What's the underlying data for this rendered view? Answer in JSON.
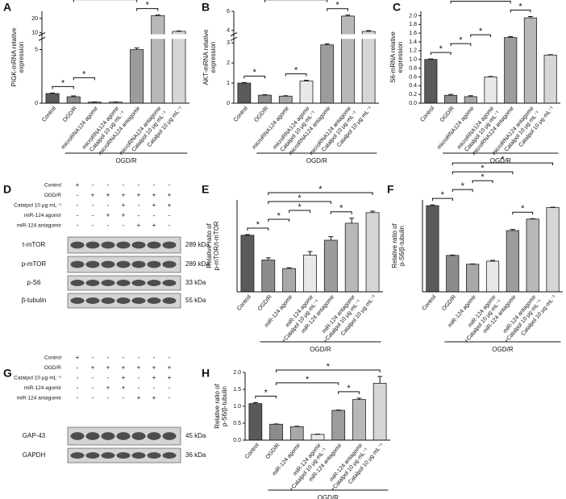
{
  "chart_data": [
    {
      "type": "bar",
      "panel": "A",
      "ylabel": [
        "PIGK-mRNA relative",
        "expression"
      ],
      "categories": [
        [
          "Control"
        ],
        [
          "OGD/R"
        ],
        [
          "microRNA124 agomir"
        ],
        [
          "microRNA124 agomir",
          "Catalpol 10 μg·mL⁻¹"
        ],
        [
          "microRNA124 antagomir"
        ],
        [
          "microRNA124 antagomir",
          "Catalpol 10 μg·mL⁻¹"
        ],
        [
          "Catalpol 10 μg·mL⁻¹"
        ]
      ],
      "values": [
        0.9,
        0.6,
        0.1,
        0.1,
        5,
        22,
        11
      ],
      "errors": [
        0.05,
        0.08,
        0.02,
        0.02,
        0.15,
        0.4,
        0.3
      ],
      "colors": [
        "#5a5a5a",
        "#8c8c8c",
        "#a8a8a8",
        "#e8e8e8",
        "#9c9c9c",
        "#b8b8b8",
        "#d6d6d6"
      ],
      "ylim": [
        0,
        25
      ],
      "ybreak": [
        6,
        9
      ],
      "yticks": [
        0,
        5,
        10,
        20
      ],
      "group_label": "OGD/R",
      "significance": [
        {
          "pair": [
            0,
            1
          ],
          "label": "*"
        },
        {
          "pair": [
            1,
            2
          ],
          "label": "*"
        },
        {
          "pair": [
            4,
            5
          ],
          "label": "*"
        },
        {
          "pair": [
            1,
            4
          ],
          "label": "*"
        },
        {
          "pair": [
            1,
            6
          ],
          "label": "*"
        }
      ]
    },
    {
      "type": "bar",
      "panel": "B",
      "ylabel": [
        "AKT-mRNA relative",
        "expression"
      ],
      "categories": [
        [
          "Control"
        ],
        [
          "OGD/R"
        ],
        [
          "microRNA124 agomir"
        ],
        [
          "microRNA124 agomir",
          "Catalpol 10 μg·mL⁻¹"
        ],
        [
          "microRNA124 antagomir"
        ],
        [
          "microRNA124 antagomir",
          "Catalpol 10 μg·mL⁻¹"
        ],
        [
          "Catalpol 10 μg·mL⁻¹"
        ]
      ],
      "values": [
        1.0,
        0.4,
        0.35,
        1.1,
        2.9,
        5.5,
        3.9
      ],
      "errors": [
        0.03,
        0.02,
        0.02,
        0.04,
        0.05,
        0.1,
        0.08
      ],
      "colors": [
        "#5a5a5a",
        "#8c8c8c",
        "#a8a8a8",
        "#e8e8e8",
        "#9c9c9c",
        "#b8b8b8",
        "#d6d6d6"
      ],
      "ylim": [
        0,
        6
      ],
      "ybreak": [
        3.2,
        3.6
      ],
      "yticks": [
        0,
        1,
        2,
        3,
        4,
        6
      ],
      "group_label": "OGD/R",
      "significance": [
        {
          "pair": [
            0,
            1
          ],
          "label": "*"
        },
        {
          "pair": [
            2,
            3
          ],
          "label": "*"
        },
        {
          "pair": [
            4,
            5
          ],
          "label": "*"
        },
        {
          "pair": [
            1,
            4
          ],
          "label": "*"
        },
        {
          "pair": [
            1,
            6
          ],
          "label": "*"
        }
      ]
    },
    {
      "type": "bar",
      "panel": "C",
      "ylabel": [
        "S6-mRNA relative",
        "expression"
      ],
      "categories": [
        [
          "Control"
        ],
        [
          "OGD/R"
        ],
        [
          "microRNA124 agomir"
        ],
        [
          "microRNA124 agomir",
          "Catalpol 10 μg·mL⁻¹"
        ],
        [
          "microRNA124 antagomir"
        ],
        [
          "microRNA124 antagomir",
          "Catalpol 10 μg·mL⁻¹"
        ],
        [
          "Catalpol 10 μg·mL⁻¹"
        ]
      ],
      "values": [
        1.0,
        0.18,
        0.15,
        0.6,
        1.5,
        1.95,
        1.1
      ],
      "errors": [
        0.01,
        0.02,
        0.02,
        0.01,
        0.02,
        0.03,
        0.01
      ],
      "colors": [
        "#5a5a5a",
        "#8c8c8c",
        "#a8a8a8",
        "#e8e8e8",
        "#9c9c9c",
        "#b8b8b8",
        "#d6d6d6"
      ],
      "ylim": [
        0,
        2.1
      ],
      "yticks": [
        {
          "value": 0,
          "label": "0.0"
        },
        0.2,
        0.4,
        0.6,
        0.8,
        {
          "value": 1,
          "label": "1.0"
        },
        1.2,
        1.4,
        1.6,
        1.8,
        {
          "value": 2,
          "label": "2.0"
        }
      ],
      "group_label": "OGD/R",
      "significance": [
        {
          "pair": [
            0,
            1
          ],
          "label": "*"
        },
        {
          "pair": [
            1,
            2
          ],
          "label": "*"
        },
        {
          "pair": [
            2,
            3
          ],
          "label": "*"
        },
        {
          "pair": [
            4,
            5
          ],
          "label": "*"
        },
        {
          "pair": [
            1,
            4
          ],
          "label": "*"
        },
        {
          "pair": [
            1,
            6
          ],
          "label": "*"
        }
      ]
    },
    {
      "type": "bar",
      "panel": "E",
      "ylabel": [
        "Relative ratio of",
        "p-mTOR/t-mTOR"
      ],
      "categories": [
        [
          "Control"
        ],
        [
          "OGD/R"
        ],
        [
          "miR-124 agomir"
        ],
        [
          "miR-124 agomir",
          "+Catalpol 10 μg·mL⁻¹"
        ],
        [
          "miR-124 antagomir"
        ],
        [
          "miR-124 antagomir",
          "+Catalpol 10 μg·mL⁻¹"
        ],
        [
          "Catalpol 10 μg·mL⁻¹"
        ]
      ],
      "values": [
        0.8,
        0.45,
        0.33,
        0.52,
        0.73,
        0.97,
        1.12
      ],
      "errors": [
        0.01,
        0.03,
        0.01,
        0.05,
        0.05,
        0.07,
        0.02
      ],
      "colors": [
        "#5a5a5a",
        "#8c8c8c",
        "#a8a8a8",
        "#e8e8e8",
        "#9c9c9c",
        "#b8b8b8",
        "#d6d6d6"
      ],
      "ylim": [
        0,
        1.3
      ],
      "group_label": "OGD/R",
      "significance": [
        {
          "pair": [
            0,
            1
          ],
          "label": "*"
        },
        {
          "pair": [
            1,
            2
          ],
          "label": "*"
        },
        {
          "pair": [
            2,
            3
          ],
          "label": "*"
        },
        {
          "pair": [
            4,
            5
          ],
          "label": "*"
        },
        {
          "pair": [
            1,
            4
          ],
          "label": "*"
        },
        {
          "pair": [
            1,
            6
          ],
          "label": "*"
        }
      ]
    },
    {
      "type": "bar",
      "panel": "F",
      "ylabel": [
        "Relative ratio of",
        "p-S6/β-tubulin"
      ],
      "categories": [
        [
          "Control"
        ],
        [
          "OGD/R"
        ],
        [
          "miR-124 agomir"
        ],
        [
          "miR-124 agomir",
          "+Catalpol 10 μg·mL⁻¹"
        ],
        [
          "miR-124 antagomir"
        ],
        [
          "miR-124 antagomir",
          "+Catalpol 10 μg·mL⁻¹"
        ],
        [
          "Catalpol 10 μg·mL⁻¹"
        ]
      ],
      "values": [
        2.25,
        0.95,
        0.72,
        0.8,
        1.6,
        1.9,
        2.2
      ],
      "errors": [
        0.02,
        0.01,
        0.01,
        0.02,
        0.03,
        0.01,
        0.01
      ],
      "colors": [
        "#5a5a5a",
        "#8c8c8c",
        "#a8a8a8",
        "#e8e8e8",
        "#9c9c9c",
        "#b8b8b8",
        "#d6d6d6"
      ],
      "ylim": [
        0,
        2.4
      ],
      "group_label": "OGD/R",
      "significance": [
        {
          "pair": [
            0,
            1
          ],
          "label": "*"
        },
        {
          "pair": [
            1,
            2
          ],
          "label": "*"
        },
        {
          "pair": [
            2,
            3
          ],
          "label": "*"
        },
        {
          "pair": [
            4,
            5
          ],
          "label": "*"
        },
        {
          "pair": [
            1,
            4
          ],
          "label": "*"
        },
        {
          "pair": [
            1,
            6
          ],
          "label": "*"
        }
      ]
    },
    {
      "type": "bar",
      "panel": "H",
      "ylabel": [
        "Relative ratio of",
        "p-S6/β-tubulin"
      ],
      "categories": [
        [
          "Control"
        ],
        [
          "OGD/R"
        ],
        [
          "miR-124 agomir"
        ],
        [
          "miR-124 agomir",
          "+Catalpol 10 μg·mL⁻¹"
        ],
        [
          "miR-124 antagomir"
        ],
        [
          "miR-124 antagomir",
          "+Catalpol 10 μg·mL⁻¹"
        ],
        [
          "Catalpol 10 μg·mL⁻¹"
        ]
      ],
      "values": [
        1.08,
        0.47,
        0.4,
        0.17,
        0.88,
        1.2,
        1.68
      ],
      "errors": [
        0.03,
        0.01,
        0.01,
        0.01,
        0.01,
        0.04,
        0.2
      ],
      "colors": [
        "#5a5a5a",
        "#8c8c8c",
        "#a8a8a8",
        "#e8e8e8",
        "#9c9c9c",
        "#b8b8b8",
        "#d6d6d6"
      ],
      "ylim": [
        0,
        2.0
      ],
      "yticks": [
        {
          "value": 0,
          "label": "0.0"
        },
        0.5,
        {
          "value": 1,
          "label": "1.0"
        },
        1.5,
        {
          "value": 2,
          "label": "2.0"
        }
      ],
      "group_label": "OGD/R",
      "significance": [
        {
          "pair": [
            0,
            1
          ],
          "label": "*"
        },
        {
          "pair": [
            4,
            5
          ],
          "label": "*"
        },
        {
          "pair": [
            1,
            4
          ],
          "label": "*"
        },
        {
          "pair": [
            1,
            6
          ],
          "label": "*"
        }
      ]
    }
  ],
  "blots": [
    {
      "panel": "D",
      "conditions": [
        {
          "label": "Control",
          "signs": [
            "+",
            "-",
            "-",
            "-",
            "-",
            "-",
            "-"
          ]
        },
        {
          "label": "OGD/R",
          "signs": [
            "-",
            "+",
            "+",
            "+",
            "+",
            "+",
            "+"
          ]
        },
        {
          "label": "Catalpol 10 μg·mL⁻¹",
          "signs": [
            "-",
            "-",
            "-",
            "+",
            "-",
            "+",
            "+"
          ]
        },
        {
          "label": "miR-124 agomir",
          "signs": [
            "-",
            "-",
            "+",
            "+",
            "-",
            "-",
            "-"
          ]
        },
        {
          "label": "miR-124 antagomir",
          "signs": [
            "-",
            "-",
            "-",
            "-",
            "+",
            "+",
            "-"
          ]
        }
      ],
      "bands": [
        {
          "label": "t-mTOR",
          "size": "289 kDa"
        },
        {
          "label": "p-mTOR",
          "size": "289 kDa"
        },
        {
          "label": "p-S6",
          "size": "33 kDa"
        },
        {
          "label": "β-tubulin",
          "size": "55 kDa"
        }
      ]
    },
    {
      "panel": "G",
      "conditions": [
        {
          "label": "Control",
          "signs": [
            "+",
            "-",
            "-",
            "-",
            "-",
            "-",
            "-"
          ]
        },
        {
          "label": "OGD/R",
          "signs": [
            "-",
            "+",
            "+",
            "+",
            "+",
            "+",
            "+"
          ]
        },
        {
          "label": "Catalpol 10 μg·mL⁻¹",
          "signs": [
            "-",
            "-",
            "-",
            "+",
            "-",
            "+",
            "+"
          ]
        },
        {
          "label": "miR-124 agomir",
          "signs": [
            "-",
            "-",
            "+",
            "+",
            "-",
            "-",
            "-"
          ]
        },
        {
          "label": "miR-124 antagomir",
          "signs": [
            "-",
            "-",
            "-",
            "-",
            "+",
            "+",
            "-"
          ]
        }
      ],
      "bands": [
        {
          "label": "GAP-43",
          "size": "45 kDa"
        },
        {
          "label": "GAPDH",
          "size": "36 kDa"
        }
      ]
    }
  ]
}
